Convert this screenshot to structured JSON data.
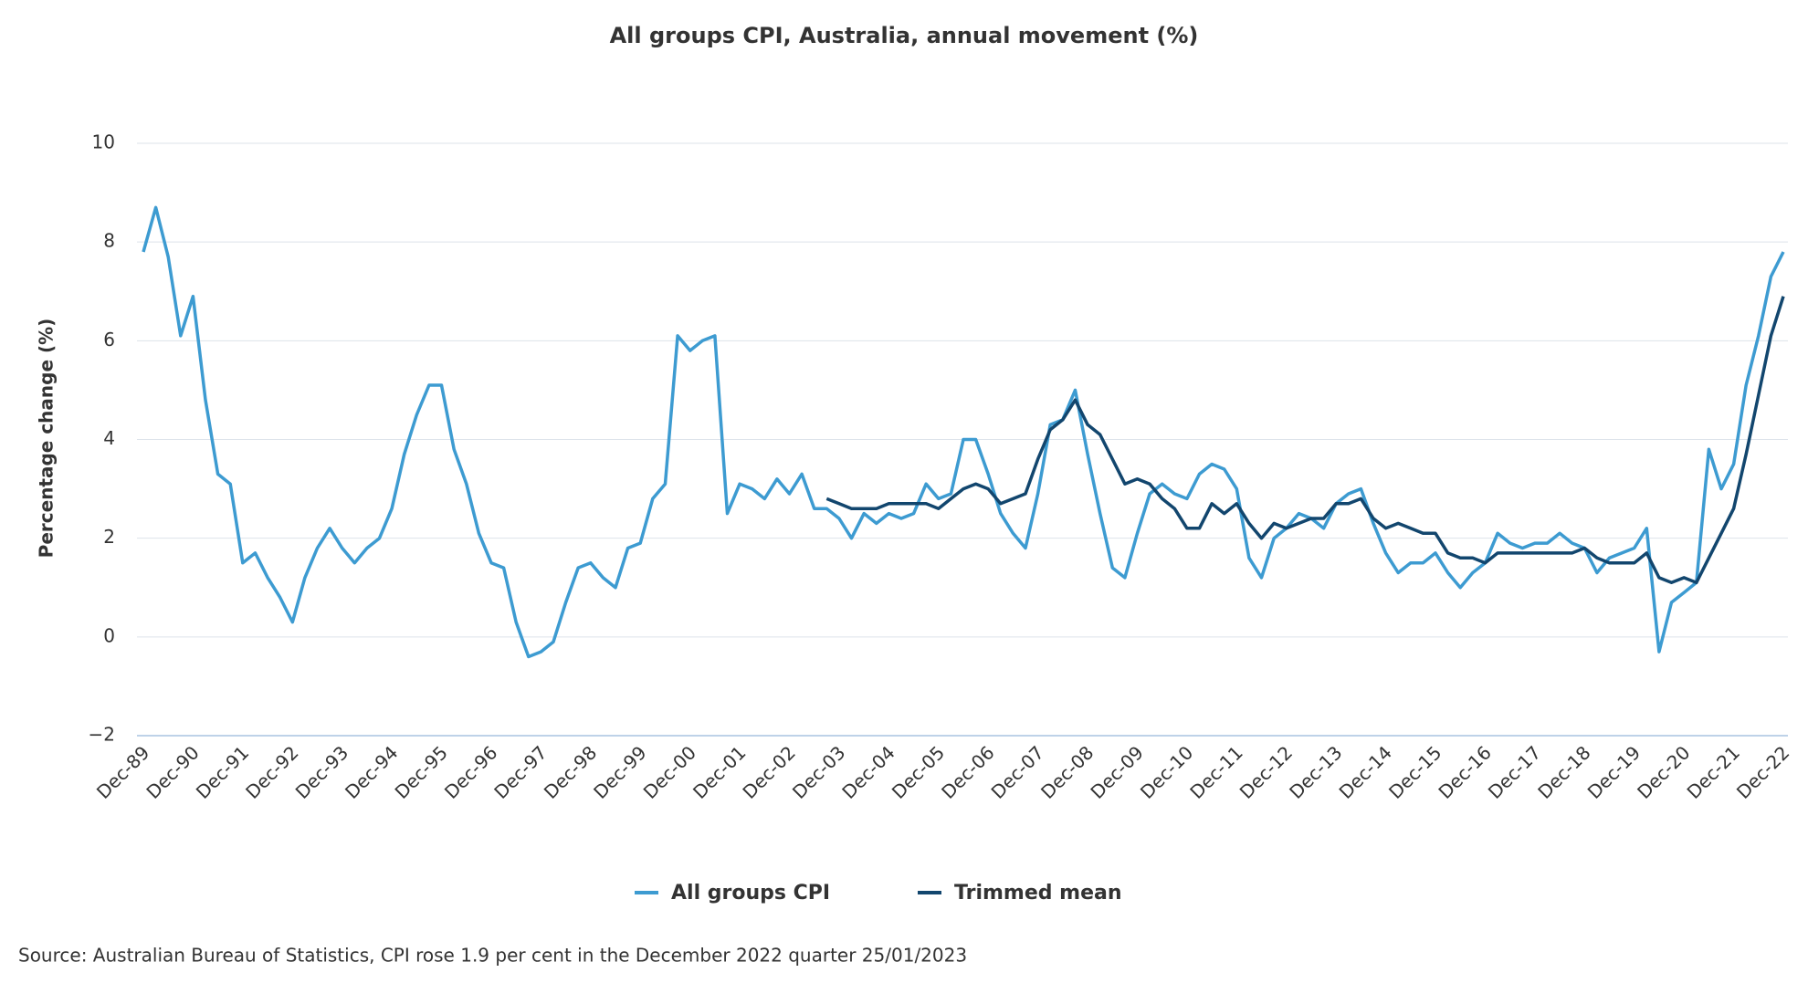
{
  "chart_data": {
    "type": "line",
    "title": "All groups CPI, Australia, annual movement (%)",
    "y_label": "Percentage change (%)",
    "source": "Source: Australian Bureau of Statistics, CPI rose 1.9 per cent in the December 2022 quarter 25/01/2023",
    "categories": [
      "Dec-89",
      null,
      null,
      null,
      "Dec-90",
      null,
      null,
      null,
      "Dec-91",
      null,
      null,
      null,
      "Dec-92",
      null,
      null,
      null,
      "Dec-93",
      null,
      null,
      null,
      "Dec-94",
      null,
      null,
      null,
      "Dec-95",
      null,
      null,
      null,
      "Dec-96",
      null,
      null,
      null,
      "Dec-97",
      null,
      null,
      null,
      "Dec-98",
      null,
      null,
      null,
      "Dec-99",
      null,
      null,
      null,
      "Dec-00",
      null,
      null,
      null,
      "Dec-01",
      null,
      null,
      null,
      "Dec-02",
      null,
      null,
      null,
      "Dec-03",
      null,
      null,
      null,
      "Dec-04",
      null,
      null,
      null,
      "Dec-05",
      null,
      null,
      null,
      "Dec-06",
      null,
      null,
      null,
      "Dec-07",
      null,
      null,
      null,
      "Dec-08",
      null,
      null,
      null,
      "Dec-09",
      null,
      null,
      null,
      "Dec-10",
      null,
      null,
      null,
      "Dec-11",
      null,
      null,
      null,
      "Dec-12",
      null,
      null,
      null,
      "Dec-13",
      null,
      null,
      null,
      "Dec-14",
      null,
      null,
      null,
      "Dec-15",
      null,
      null,
      null,
      "Dec-16",
      null,
      null,
      null,
      "Dec-17",
      null,
      null,
      null,
      "Dec-18",
      null,
      null,
      null,
      "Dec-19",
      null,
      null,
      null,
      "Dec-20",
      null,
      null,
      null,
      "Dec-21",
      null,
      null,
      null,
      "Dec-22"
    ],
    "series": [
      {
        "name": "All groups CPI",
        "color": "#3d9bd1",
        "values": [
          7.8,
          8.7,
          7.7,
          6.1,
          6.9,
          4.8,
          3.3,
          3.1,
          1.5,
          1.7,
          1.2,
          0.8,
          0.3,
          1.2,
          1.8,
          2.2,
          1.8,
          1.5,
          1.8,
          2.0,
          2.6,
          3.7,
          4.5,
          5.1,
          5.1,
          3.8,
          3.1,
          2.1,
          1.5,
          1.4,
          0.3,
          -0.4,
          -0.3,
          -0.1,
          0.7,
          1.4,
          1.5,
          1.2,
          1.0,
          1.8,
          1.9,
          2.8,
          3.1,
          6.1,
          5.8,
          6.0,
          6.1,
          2.5,
          3.1,
          3.0,
          2.8,
          3.2,
          2.9,
          3.3,
          2.6,
          2.6,
          2.4,
          2.0,
          2.5,
          2.3,
          2.5,
          2.4,
          2.5,
          3.1,
          2.8,
          2.9,
          4.0,
          4.0,
          3.3,
          2.5,
          2.1,
          1.8,
          2.9,
          4.3,
          4.4,
          5.0,
          3.7,
          2.5,
          1.4,
          1.2,
          2.1,
          2.9,
          3.1,
          2.9,
          2.8,
          3.3,
          3.5,
          3.4,
          3.0,
          1.6,
          1.2,
          2.0,
          2.2,
          2.5,
          2.4,
          2.2,
          2.7,
          2.9,
          3.0,
          2.3,
          1.7,
          1.3,
          1.5,
          1.5,
          1.7,
          1.3,
          1.0,
          1.3,
          1.5,
          2.1,
          1.9,
          1.8,
          1.9,
          1.9,
          2.1,
          1.9,
          1.8,
          1.3,
          1.6,
          1.7,
          1.8,
          2.2,
          -0.3,
          0.7,
          0.9,
          1.1,
          3.8,
          3.0,
          3.5,
          5.1,
          6.1,
          7.3,
          7.8
        ]
      },
      {
        "name": "Trimmed mean",
        "color": "#12466e",
        "values": [
          null,
          null,
          null,
          null,
          null,
          null,
          null,
          null,
          null,
          null,
          null,
          null,
          null,
          null,
          null,
          null,
          null,
          null,
          null,
          null,
          null,
          null,
          null,
          null,
          null,
          null,
          null,
          null,
          null,
          null,
          null,
          null,
          null,
          null,
          null,
          null,
          null,
          null,
          null,
          null,
          null,
          null,
          null,
          null,
          null,
          null,
          null,
          null,
          null,
          null,
          null,
          null,
          null,
          null,
          null,
          2.8,
          2.7,
          2.6,
          2.6,
          2.6,
          2.7,
          2.7,
          2.7,
          2.7,
          2.6,
          2.8,
          3.0,
          3.1,
          3.0,
          2.7,
          2.8,
          2.9,
          3.6,
          4.2,
          4.4,
          4.8,
          4.3,
          4.1,
          3.6,
          3.1,
          3.2,
          3.1,
          2.8,
          2.6,
          2.2,
          2.2,
          2.7,
          2.5,
          2.7,
          2.3,
          2.0,
          2.3,
          2.2,
          2.3,
          2.4,
          2.4,
          2.7,
          2.7,
          2.8,
          2.4,
          2.2,
          2.3,
          2.2,
          2.1,
          2.1,
          1.7,
          1.6,
          1.6,
          1.5,
          1.7,
          1.7,
          1.7,
          1.7,
          1.7,
          1.7,
          1.7,
          1.8,
          1.6,
          1.5,
          1.5,
          1.5,
          1.7,
          1.2,
          1.1,
          1.2,
          1.1,
          1.6,
          2.1,
          2.6,
          3.7,
          4.9,
          6.1,
          6.9
        ]
      }
    ],
    "ylim": [
      -2,
      10
    ],
    "yticks": [
      {
        "value": -2,
        "label": "−2"
      },
      0,
      2,
      4,
      6,
      8,
      10
    ],
    "grid": true
  }
}
